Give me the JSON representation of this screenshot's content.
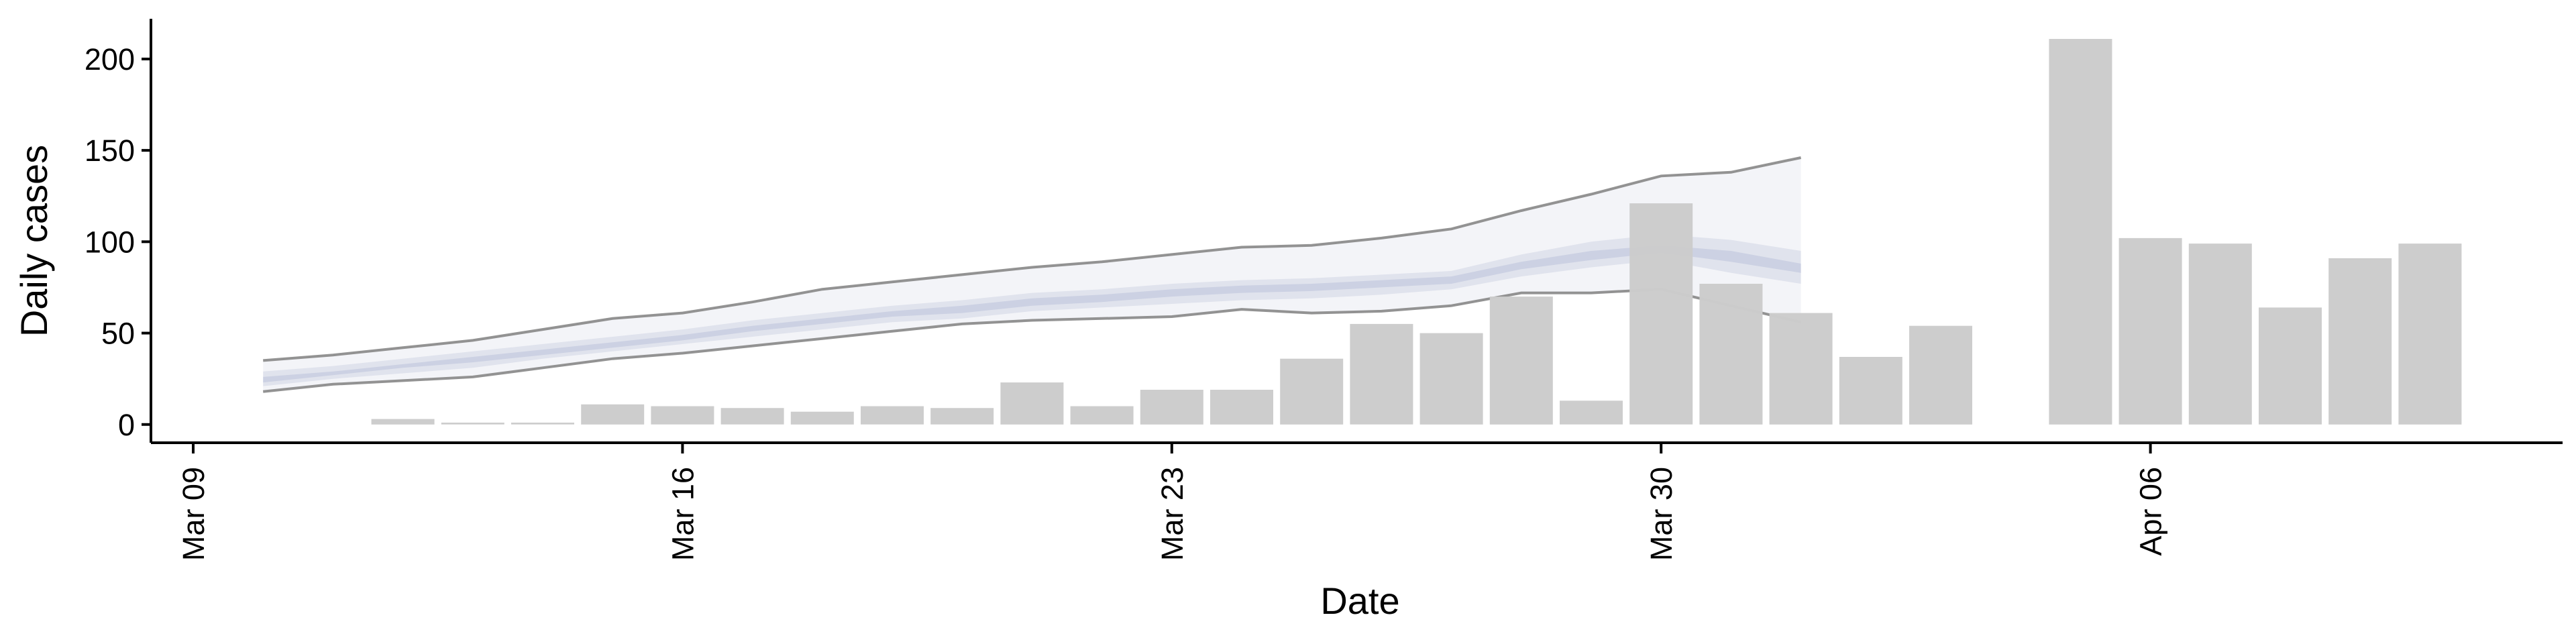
{
  "chart_data": {
    "type": "bar",
    "title": "",
    "xlabel": "Date",
    "ylabel": "Daily cases",
    "ylim": [
      -10,
      222
    ],
    "yticks": [
      0,
      50,
      100,
      150,
      200
    ],
    "xlim": [
      "2020-03-09",
      "2020-04-16"
    ],
    "xticks": [
      {
        "date": "2020-03-09",
        "label": "Mar 09"
      },
      {
        "date": "2020-03-16",
        "label": "Mar 16"
      },
      {
        "date": "2020-03-23",
        "label": "Mar 23"
      },
      {
        "date": "2020-03-30",
        "label": "Mar 30"
      },
      {
        "date": "2020-04-06",
        "label": "Apr 06"
      }
    ],
    "grid": false,
    "bar_color": "#cccccc",
    "bars": {
      "dates": [
        "2020-03-12",
        "2020-03-13",
        "2020-03-14",
        "2020-03-15",
        "2020-03-16",
        "2020-03-17",
        "2020-03-18",
        "2020-03-19",
        "2020-03-20",
        "2020-03-21",
        "2020-03-22",
        "2020-03-23",
        "2020-03-24",
        "2020-03-25",
        "2020-03-26",
        "2020-03-27",
        "2020-03-28",
        "2020-03-29",
        "2020-03-30",
        "2020-03-31",
        "2020-04-01",
        "2020-04-02",
        "2020-04-03",
        "2020-04-05",
        "2020-04-06",
        "2020-04-07",
        "2020-04-08",
        "2020-04-09",
        "2020-04-10"
      ],
      "values": [
        3,
        1,
        1,
        11,
        10,
        9,
        7,
        10,
        9,
        23,
        10,
        19,
        19,
        36,
        55,
        50,
        70,
        13,
        121,
        77,
        61,
        37,
        54,
        211,
        102,
        99,
        64,
        91,
        99
      ]
    },
    "nowcast": {
      "color": "#bcc3da",
      "dates": [
        "2020-03-10",
        "2020-03-11",
        "2020-03-12",
        "2020-03-13",
        "2020-03-14",
        "2020-03-15",
        "2020-03-16",
        "2020-03-17",
        "2020-03-18",
        "2020-03-19",
        "2020-03-20",
        "2020-03-21",
        "2020-03-22",
        "2020-03-23",
        "2020-03-24",
        "2020-03-25",
        "2020-03-26",
        "2020-03-27",
        "2020-03-28",
        "2020-03-29",
        "2020-03-30",
        "2020-03-31",
        "2020-04-01"
      ],
      "outer_upper": [
        35,
        38,
        42,
        46,
        52,
        58,
        61,
        67,
        74,
        78,
        82,
        86,
        89,
        93,
        97,
        98,
        102,
        107,
        117,
        126,
        136,
        138,
        146
      ],
      "outer_lower": [
        18,
        22,
        24,
        26,
        31,
        36,
        39,
        43,
        47,
        51,
        55,
        57,
        58,
        59,
        63,
        61,
        62,
        65,
        72,
        72,
        74,
        65,
        56
      ],
      "inner_upper": [
        29,
        32,
        36,
        40,
        44,
        48,
        52,
        57,
        61,
        65,
        68,
        72,
        74,
        77,
        79,
        80,
        82,
        84,
        93,
        100,
        104,
        101,
        95
      ],
      "inner_lower": [
        21,
        25,
        28,
        31,
        36,
        40,
        44,
        48,
        52,
        56,
        58,
        62,
        64,
        66,
        68,
        69,
        71,
        74,
        81,
        86,
        90,
        83,
        77
      ],
      "median_upper": [
        26,
        29,
        33,
        37,
        41,
        45,
        49,
        54,
        58,
        62,
        65,
        69,
        71,
        74,
        76,
        77,
        79,
        81,
        89,
        95,
        98,
        95,
        88
      ],
      "median_lower": [
        23,
        27,
        31,
        34,
        38,
        42,
        46,
        51,
        55,
        59,
        61,
        65,
        67,
        70,
        72,
        73,
        75,
        77,
        85,
        90,
        94,
        89,
        83
      ]
    }
  }
}
